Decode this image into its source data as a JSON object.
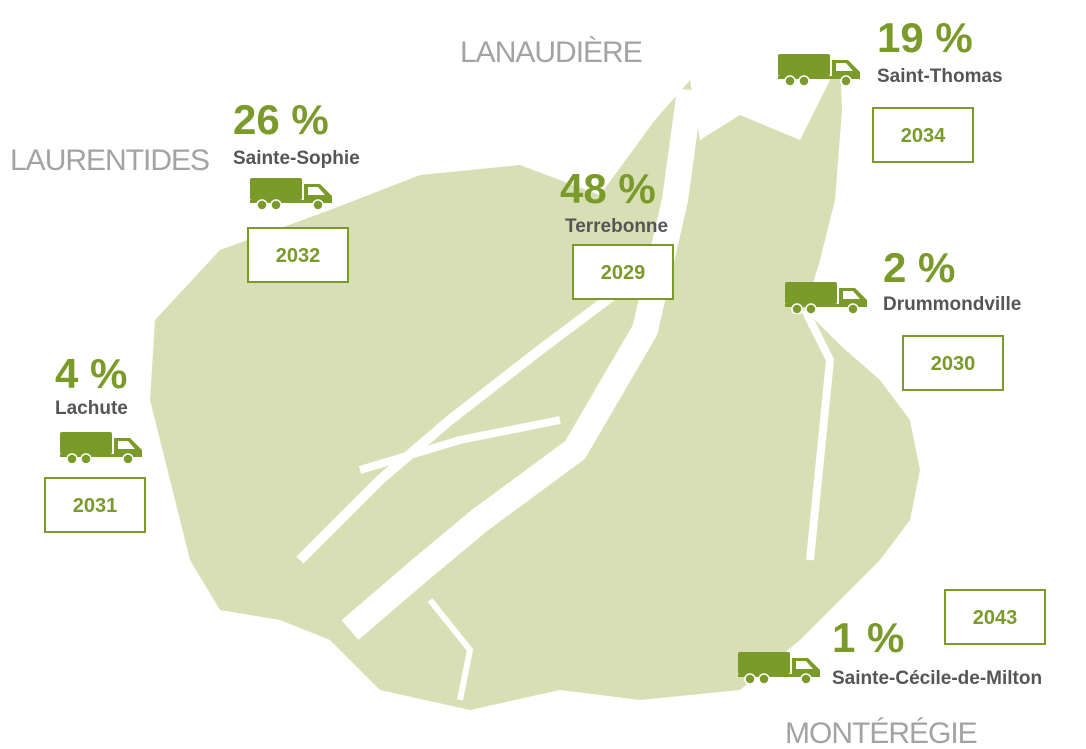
{
  "regions": [
    "LANAUDIÈRE",
    "LAURENTIDES",
    "MONTÉRÉGIE"
  ],
  "sites": [
    {
      "percent": "26 %",
      "name": "Sainte-Sophie",
      "year": "2032"
    },
    {
      "percent": "48 %",
      "name": "Terrebonne",
      "year": "2029"
    },
    {
      "percent": "19 %",
      "name": "Saint-Thomas",
      "year": "2034"
    },
    {
      "percent": "2 %",
      "name": "Drummondville",
      "year": "2030"
    },
    {
      "percent": "4 %",
      "name": "Lachute",
      "year": "2031"
    },
    {
      "percent": "1 %",
      "name": "Sainte-Cécile-de-Milton",
      "year": "2043"
    }
  ]
}
